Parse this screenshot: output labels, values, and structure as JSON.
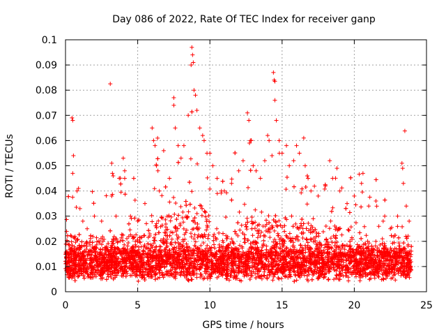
{
  "chart_data": {
    "type": "scatter",
    "title": "Day 086 of 2022, Rate Of TEC Index for receiver ganp",
    "xlabel": "GPS time / hours",
    "ylabel": "ROTI / TECUs",
    "xlim": [
      0,
      25
    ],
    "ylim": [
      0,
      0.1
    ],
    "xticks": [
      0,
      5,
      10,
      15,
      20,
      25
    ],
    "yticks": [
      0,
      0.01,
      0.02,
      0.03,
      0.04,
      0.05,
      0.06,
      0.07,
      0.08,
      0.09,
      0.1
    ],
    "xtick_labels": [
      "0",
      "5",
      "10",
      "15",
      "20",
      "25"
    ],
    "ytick_labels": [
      "0",
      "0.01",
      "0.02",
      "0.03",
      "0.04",
      "0.05",
      "0.06",
      "0.07",
      "0.08",
      "0.09",
      "0.1"
    ],
    "grid": true,
    "marker": "+",
    "color": "#ff0000",
    "series": [
      {
        "points": [
          [
            0.2,
            0.012
          ],
          [
            0.3,
            0.015
          ],
          [
            0.4,
            0.022
          ],
          [
            0.5,
            0.047
          ],
          [
            0.45,
            0.069
          ],
          [
            0.5,
            0.068
          ],
          [
            0.55,
            0.054
          ],
          [
            0.8,
            0.04
          ],
          [
            0.9,
            0.041
          ],
          [
            1.0,
            0.033
          ],
          [
            1.2,
            0.028
          ],
          [
            1.5,
            0.025
          ],
          [
            2.0,
            0.03
          ],
          [
            2.5,
            0.028
          ],
          [
            3.1,
            0.0825
          ],
          [
            3.2,
            0.051
          ],
          [
            3.25,
            0.047
          ],
          [
            3.3,
            0.046
          ],
          [
            3.2,
            0.038
          ],
          [
            3.5,
            0.03
          ],
          [
            4.0,
            0.053
          ],
          [
            4.1,
            0.048
          ],
          [
            4.1,
            0.045
          ],
          [
            4.5,
            0.03
          ],
          [
            5.0,
            0.028
          ],
          [
            5.5,
            0.035
          ],
          [
            6.0,
            0.065
          ],
          [
            6.1,
            0.06
          ],
          [
            6.2,
            0.058
          ],
          [
            6.3,
            0.05
          ],
          [
            6.4,
            0.048
          ],
          [
            6.5,
            0.04
          ],
          [
            6.8,
            0.056
          ],
          [
            7.2,
            0.045
          ],
          [
            7.5,
            0.074
          ],
          [
            7.5,
            0.077
          ],
          [
            7.6,
            0.065
          ],
          [
            7.8,
            0.058
          ],
          [
            8.0,
            0.053
          ],
          [
            8.2,
            0.058
          ],
          [
            8.5,
            0.07
          ],
          [
            8.7,
            0.09
          ],
          [
            8.75,
            0.097
          ],
          [
            8.8,
            0.094
          ],
          [
            8.85,
            0.091
          ],
          [
            8.9,
            0.08
          ],
          [
            9.0,
            0.078
          ],
          [
            9.1,
            0.072
          ],
          [
            9.3,
            0.065
          ],
          [
            9.5,
            0.062
          ],
          [
            9.6,
            0.06
          ],
          [
            9.8,
            0.055
          ],
          [
            10.0,
            0.055
          ],
          [
            10.2,
            0.05
          ],
          [
            10.5,
            0.045
          ],
          [
            10.8,
            0.04
          ],
          [
            11.0,
            0.04
          ],
          [
            11.5,
            0.043
          ],
          [
            12.0,
            0.048
          ],
          [
            12.3,
            0.052
          ],
          [
            12.6,
            0.071
          ],
          [
            12.7,
            0.068
          ],
          [
            12.8,
            0.06
          ],
          [
            13.0,
            0.05
          ],
          [
            13.2,
            0.048
          ],
          [
            13.5,
            0.045
          ],
          [
            13.8,
            0.052
          ],
          [
            14.0,
            0.062
          ],
          [
            14.1,
            0.06
          ],
          [
            14.3,
            0.054
          ],
          [
            14.4,
            0.087
          ],
          [
            14.45,
            0.084
          ],
          [
            14.5,
            0.0835
          ],
          [
            14.5,
            0.076
          ],
          [
            14.6,
            0.068
          ],
          [
            14.8,
            0.06
          ],
          [
            15.0,
            0.055
          ],
          [
            15.3,
            0.058
          ],
          [
            15.5,
            0.05
          ],
          [
            15.8,
            0.052
          ],
          [
            16.0,
            0.058
          ],
          [
            16.2,
            0.055
          ],
          [
            16.5,
            0.061
          ],
          [
            16.6,
            0.05
          ],
          [
            16.8,
            0.045
          ],
          [
            17.0,
            0.04
          ],
          [
            17.5,
            0.038
          ],
          [
            18.0,
            0.042
          ],
          [
            18.3,
            0.052
          ],
          [
            18.5,
            0.045
          ],
          [
            18.8,
            0.049
          ],
          [
            19.0,
            0.04
          ],
          [
            19.5,
            0.035
          ],
          [
            20.0,
            0.038
          ],
          [
            20.5,
            0.043
          ],
          [
            20.6,
            0.047
          ],
          [
            21.0,
            0.034
          ],
          [
            21.5,
            0.036
          ],
          [
            22.0,
            0.028
          ],
          [
            22.5,
            0.025
          ],
          [
            23.0,
            0.03
          ],
          [
            23.3,
            0.051
          ],
          [
            23.35,
            0.049
          ],
          [
            23.4,
            0.043
          ],
          [
            23.5,
            0.0638
          ],
          [
            23.6,
            0.034
          ],
          [
            23.8,
            0.028
          ]
        ]
      }
    ]
  }
}
